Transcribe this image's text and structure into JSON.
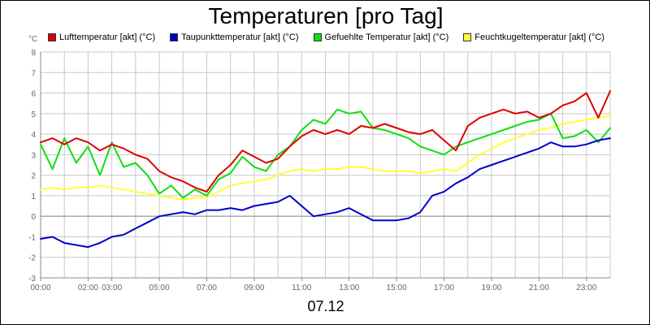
{
  "chart_data": {
    "type": "line",
    "title": "Temperaturen [pro Tag]",
    "unit": "°C",
    "xlabel": "07.12",
    "ylim": [
      -3,
      8
    ],
    "y_ticks": [
      "-3",
      "-2",
      "-1",
      "0",
      "1",
      "2",
      "3",
      "4",
      "5",
      "6",
      "7",
      "8"
    ],
    "x_ticks": [
      {
        "h": 0,
        "label": "00:00"
      },
      {
        "h": 2,
        "label": "02:00"
      },
      {
        "h": 3,
        "label": "03:00"
      },
      {
        "h": 5,
        "label": "05:00"
      },
      {
        "h": 7,
        "label": "07:00"
      },
      {
        "h": 9,
        "label": "09:00"
      },
      {
        "h": 11,
        "label": "11:00"
      },
      {
        "h": 13,
        "label": "13:00"
      },
      {
        "h": 15,
        "label": "15:00"
      },
      {
        "h": 17,
        "label": "17:00"
      },
      {
        "h": 19,
        "label": "19:00"
      },
      {
        "h": 21,
        "label": "21:00"
      },
      {
        "h": 23,
        "label": "23:00"
      }
    ],
    "grid": true,
    "legend_position": "top",
    "series": [
      {
        "name": "Lufttemperatur [akt] (°C)",
        "color": "#dd0000",
        "x": [
          0,
          0.5,
          1,
          1.5,
          2,
          2.5,
          3,
          3.5,
          4,
          4.5,
          5,
          5.5,
          6,
          6.5,
          7,
          7.5,
          8,
          8.5,
          9,
          9.5,
          10,
          10.5,
          11,
          11.5,
          12,
          12.5,
          13,
          13.5,
          14,
          14.5,
          15,
          15.5,
          16,
          16.5,
          17,
          17.5,
          18,
          18.5,
          19,
          19.5,
          20,
          20.5,
          21,
          21.5,
          22,
          22.5,
          23,
          23.5,
          24
        ],
        "values": [
          3.6,
          3.8,
          3.5,
          3.8,
          3.6,
          3.2,
          3.5,
          3.3,
          3.0,
          2.8,
          2.2,
          1.9,
          1.7,
          1.4,
          1.2,
          2.0,
          2.5,
          3.2,
          2.9,
          2.6,
          2.8,
          3.4,
          3.9,
          4.2,
          4.0,
          4.2,
          4.0,
          4.4,
          4.3,
          4.5,
          4.3,
          4.1,
          4.0,
          4.2,
          3.7,
          3.2,
          4.4,
          4.8,
          5.0,
          5.2,
          5.0,
          5.1,
          4.8,
          5.0,
          5.4,
          5.6,
          6.0,
          4.8,
          6.1
        ]
      },
      {
        "name": "Taupunkttemperatur [akt] (°C)",
        "color": "#0000cc",
        "x": [
          0,
          0.5,
          1,
          1.5,
          2,
          2.5,
          3,
          3.5,
          4,
          4.5,
          5,
          5.5,
          6,
          6.5,
          7,
          7.5,
          8,
          8.5,
          9,
          9.5,
          10,
          10.5,
          11,
          11.5,
          12,
          12.5,
          13,
          13.5,
          14,
          14.5,
          15,
          15.5,
          16,
          16.5,
          17,
          17.5,
          18,
          18.5,
          19,
          19.5,
          20,
          20.5,
          21,
          21.5,
          22,
          22.5,
          23,
          23.5,
          24
        ],
        "values": [
          -1.1,
          -1.0,
          -1.3,
          -1.4,
          -1.5,
          -1.3,
          -1.0,
          -0.9,
          -0.6,
          -0.3,
          0.0,
          0.1,
          0.2,
          0.1,
          0.3,
          0.3,
          0.4,
          0.3,
          0.5,
          0.6,
          0.7,
          1.0,
          0.5,
          0.0,
          0.1,
          0.2,
          0.4,
          0.1,
          -0.2,
          -0.2,
          -0.2,
          -0.1,
          0.2,
          1.0,
          1.2,
          1.6,
          1.9,
          2.3,
          2.5,
          2.7,
          2.9,
          3.1,
          3.3,
          3.6,
          3.4,
          3.4,
          3.5,
          3.7,
          3.8
        ]
      },
      {
        "name": "Gefuehlte Temperatur [akt] (°C)",
        "color": "#11dd11",
        "x": [
          0,
          0.5,
          1,
          1.5,
          2,
          2.5,
          3,
          3.5,
          4,
          4.5,
          5,
          5.5,
          6,
          6.5,
          7,
          7.5,
          8,
          8.5,
          9,
          9.5,
          10,
          10.5,
          11,
          11.5,
          12,
          12.5,
          13,
          13.5,
          14,
          14.5,
          15,
          15.5,
          16,
          16.5,
          17,
          17.5,
          18,
          18.5,
          19,
          19.5,
          20,
          20.5,
          21,
          21.5,
          22,
          22.5,
          23,
          23.5,
          24
        ],
        "values": [
          3.5,
          2.3,
          3.8,
          2.6,
          3.4,
          2.0,
          3.6,
          2.4,
          2.6,
          2.0,
          1.1,
          1.5,
          0.9,
          1.3,
          1.0,
          1.8,
          2.1,
          2.9,
          2.4,
          2.2,
          3.0,
          3.4,
          4.2,
          4.7,
          4.5,
          5.2,
          5.0,
          5.1,
          4.3,
          4.2,
          4.0,
          3.8,
          3.4,
          3.2,
          3.0,
          3.4,
          3.6,
          3.8,
          4.0,
          4.2,
          4.4,
          4.6,
          4.7,
          5.0,
          3.8,
          3.9,
          4.2,
          3.6,
          4.3
        ]
      },
      {
        "name": "Feuchtkugeltemperatur [akt] (°C)",
        "color": "#ffff33",
        "x": [
          0,
          0.5,
          1,
          1.5,
          2,
          2.5,
          3,
          3.5,
          4,
          4.5,
          5,
          5.5,
          6,
          6.5,
          7,
          7.5,
          8,
          8.5,
          9,
          9.5,
          10,
          10.5,
          11,
          11.5,
          12,
          12.5,
          13,
          13.5,
          14,
          14.5,
          15,
          15.5,
          16,
          16.5,
          17,
          17.5,
          18,
          18.5,
          19,
          19.5,
          20,
          20.5,
          21,
          21.5,
          22,
          22.5,
          23,
          23.5,
          24
        ],
        "values": [
          1.3,
          1.4,
          1.3,
          1.4,
          1.4,
          1.5,
          1.4,
          1.3,
          1.2,
          1.1,
          1.0,
          0.9,
          0.8,
          0.9,
          0.9,
          1.2,
          1.5,
          1.6,
          1.7,
          1.8,
          2.0,
          2.2,
          2.3,
          2.2,
          2.3,
          2.3,
          2.4,
          2.4,
          2.3,
          2.2,
          2.2,
          2.2,
          2.1,
          2.2,
          2.3,
          2.2,
          2.6,
          3.0,
          3.3,
          3.6,
          3.8,
          4.0,
          4.2,
          4.3,
          4.5,
          4.6,
          4.7,
          4.8,
          4.9
        ]
      }
    ]
  }
}
